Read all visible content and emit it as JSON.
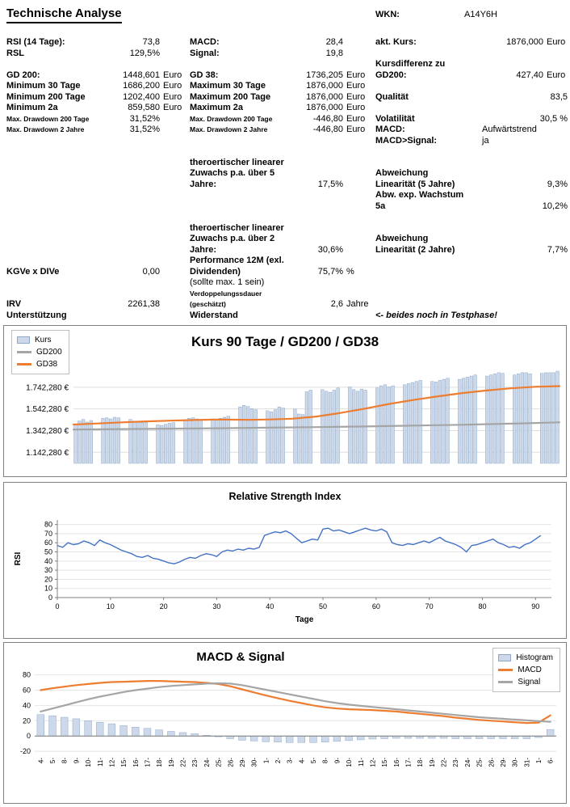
{
  "header": {
    "title": "Technische Analyse",
    "wkn_label": "WKN:",
    "wkn_value": "A14Y6H"
  },
  "colors": {
    "bar_fill": "#cdd9ea",
    "bar_stroke": "#8ea9c8",
    "orange": "#ed7d31",
    "gray": "#a5a5a5",
    "rsi_line": "#4472c4",
    "grid": "#dddddd",
    "axis": "#808080"
  },
  "stats": {
    "rows": [
      {
        "a": {
          "l": "RSI (14 Tage):",
          "v": "73,8"
        },
        "b": {
          "l": "MACD:",
          "v": "28,4"
        },
        "c": {
          "l": "akt. Kurs:",
          "v": "1876,000",
          "u": "Euro"
        }
      },
      {
        "a": {
          "l": "RSL",
          "v": "129,5%"
        },
        "b": {
          "l": "Signal:",
          "v": "19,8"
        },
        "c": {}
      },
      {
        "a": {},
        "b": {},
        "c": {
          "l": "Kursdifferenz zu"
        }
      },
      {
        "a": {
          "l": "GD 200:",
          "v": "1448,601",
          "u": "Euro"
        },
        "b": {
          "l": "GD 38:",
          "v": "1736,205",
          "u": "Euro"
        },
        "c": {
          "l": "GD200:",
          "v": "427,40",
          "u": "Euro"
        }
      },
      {
        "a": {
          "l": "Minimum 30 Tage",
          "v": "1686,200",
          "u": "Euro"
        },
        "b": {
          "l": "Maximum 30 Tage",
          "v": "1876,000",
          "u": "Euro"
        },
        "c": {}
      },
      {
        "a": {
          "l": "Minimum 200 Tage",
          "v": "1202,400",
          "u": "Euro"
        },
        "b": {
          "l": "Maximum 200 Tage",
          "v": "1876,000",
          "u": "Euro"
        },
        "c": {
          "l": "Qualität",
          "v": "83,5",
          "s": "span"
        }
      },
      {
        "a": {
          "l": "Minimum 2a",
          "v": "859,580",
          "u": "Euro"
        },
        "b": {
          "l": "Maximum 2a",
          "v": "1876,000",
          "u": "Euro"
        },
        "c": {}
      },
      {
        "a": {
          "l": "Max. Drawdown 200 Tage",
          "v": "31,52%",
          "s": "sm"
        },
        "b": {
          "l": "Max. Drawdown 200 Tage",
          "v": "-446,80",
          "u": "Euro",
          "s": "sm"
        },
        "c": {
          "l": "Volatilität",
          "v": "30,5 %",
          "s": "span"
        }
      },
      {
        "a": {
          "l": "Max. Drawdown 2 Jahre",
          "v": "31,52%",
          "s": "sm"
        },
        "b": {
          "l": "Max. Drawdown 2 Jahre",
          "v": "-446,80",
          "u": "Euro",
          "s": "sm"
        },
        "c": {
          "l": "MACD:",
          "v": "Aufwärtstrend",
          "s": "vleft"
        }
      },
      {
        "a": {},
        "b": {},
        "c": {
          "l": "MACD>Signal:",
          "v": "ja",
          "s": "vleft"
        }
      },
      {
        "a": {},
        "b": {},
        "c": {}
      },
      {
        "a": {},
        "b": {
          "l": "theroertischer linearer"
        },
        "c": {}
      },
      {
        "a": {},
        "b": {
          "l": "Zuwachs p.a. über 5"
        },
        "c": {
          "l": "Abweichung"
        }
      },
      {
        "a": {},
        "b": {
          "l": "Jahre:",
          "v": "17,5%"
        },
        "c": {
          "l": "Linearität (5 Jahre)",
          "v": "9,3%",
          "s": "span"
        }
      },
      {
        "a": {},
        "b": {},
        "c": {
          "l": "Abw. exp. Wachstum"
        }
      },
      {
        "a": {},
        "b": {},
        "c": {
          "l": "5a",
          "v": "10,2%",
          "s": "span"
        }
      },
      {
        "a": {},
        "b": {},
        "c": {}
      },
      {
        "a": {},
        "b": {
          "l": "theroertischer linearer"
        },
        "c": {}
      },
      {
        "a": {},
        "b": {
          "l": "Zuwachs p.a. über 2"
        },
        "c": {
          "l": "Abweichung"
        }
      },
      {
        "a": {},
        "b": {
          "l": "Jahre:",
          "v": "30,6%"
        },
        "c": {
          "l": "Linearität (2 Jahre)",
          "v": "7,7%",
          "s": "span"
        }
      },
      {
        "a": {},
        "b": {
          "l": "Performance 12M (exl."
        },
        "c": {}
      },
      {
        "a": {
          "l": "KGVe x DIVe",
          "v": "0,00"
        },
        "b": {
          "l": "Dividenden)",
          "v": "75,7%",
          "u": "%"
        },
        "c": {}
      },
      {
        "a": {},
        "b": {
          "l": "(sollte max. 1 sein)",
          "s": "reg"
        },
        "c": {}
      },
      {
        "a": {},
        "b": {
          "l": "Verdoppelungssdauer",
          "s": "sm"
        },
        "c": {}
      },
      {
        "a": {
          "l": "IRV",
          "v": "2261,38"
        },
        "b": {
          "l": "(geschätzt)",
          "v": "2,6",
          "u": "Jahre",
          "s": "sm"
        },
        "c": {}
      },
      {
        "a": {
          "l": "Unterstützung"
        },
        "b": {
          "l": "Widerstand"
        },
        "c": {
          "l": "<- beides noch in Testphase!",
          "s": "it"
        }
      }
    ]
  },
  "chart_data": [
    {
      "type": "bar",
      "title": "Kurs 90 Tage / GD200 / GD38",
      "legend": [
        {
          "label": "Kurs",
          "swatch": "bar"
        },
        {
          "label": "GD200",
          "swatch": "line",
          "color": "#a5a5a5"
        },
        {
          "label": "GD38",
          "swatch": "line",
          "color": "#ed7d31"
        }
      ],
      "ylim": [
        1040,
        1920
      ],
      "yticks": [
        {
          "v": 1142.28,
          "label": "1.142,280 €"
        },
        {
          "v": 1342.28,
          "label": "1.342,280 €"
        },
        {
          "v": 1542.28,
          "label": "1.542,280 €"
        },
        {
          "v": 1742.28,
          "label": "1.742,280 €"
        }
      ],
      "bars": [
        1400,
        1430,
        1445,
        1420,
        1435,
        0,
        0,
        1455,
        1460,
        1450,
        1465,
        1460,
        0,
        0,
        1445,
        1430,
        1425,
        1415,
        1420,
        0,
        0,
        1395,
        1390,
        1400,
        1410,
        1415,
        0,
        0,
        1435,
        1455,
        1460,
        1450,
        1445,
        0,
        0,
        1450,
        1445,
        1455,
        1465,
        1475,
        0,
        0,
        1560,
        1575,
        1565,
        1545,
        1535,
        0,
        0,
        1525,
        1515,
        1535,
        1560,
        1550,
        0,
        0,
        1540,
        1495,
        1490,
        1700,
        1715,
        0,
        0,
        1720,
        1705,
        1695,
        1715,
        1735,
        0,
        0,
        1745,
        1720,
        1705,
        1725,
        1715,
        0,
        0,
        1735,
        1755,
        1765,
        1745,
        1755,
        0,
        0,
        1765,
        1775,
        1785,
        1795,
        1805,
        0,
        0,
        1795,
        1790,
        1805,
        1815,
        1825,
        0,
        0,
        1815,
        1825,
        1835,
        1845,
        1855,
        0,
        0,
        1845,
        1855,
        1865,
        1876,
        1870,
        0,
        0,
        1855,
        1865,
        1876,
        1876,
        1865,
        0,
        0,
        1870,
        1876,
        1876,
        1876,
        1890
      ],
      "lines": [
        {
          "name": "GD200",
          "color": "#a5a5a5",
          "pts": [
            [
              0,
              1352
            ],
            [
              0.1,
              1356
            ],
            [
              0.2,
              1360
            ],
            [
              0.3,
              1364
            ],
            [
              0.4,
              1369
            ],
            [
              0.5,
              1374
            ],
            [
              0.6,
              1380
            ],
            [
              0.7,
              1388
            ],
            [
              0.8,
              1396
            ],
            [
              0.9,
              1406
            ],
            [
              1,
              1418
            ]
          ]
        },
        {
          "name": "GD38",
          "color": "#ed7d31",
          "pts": [
            [
              0,
              1398
            ],
            [
              0.05,
              1408
            ],
            [
              0.1,
              1418
            ],
            [
              0.15,
              1427
            ],
            [
              0.2,
              1434
            ],
            [
              0.25,
              1440
            ],
            [
              0.3,
              1444
            ],
            [
              0.33,
              1443
            ],
            [
              0.36,
              1441
            ],
            [
              0.4,
              1444
            ],
            [
              0.45,
              1452
            ],
            [
              0.5,
              1472
            ],
            [
              0.55,
              1505
            ],
            [
              0.6,
              1545
            ],
            [
              0.65,
              1588
            ],
            [
              0.7,
              1625
            ],
            [
              0.75,
              1658
            ],
            [
              0.8,
              1688
            ],
            [
              0.85,
              1712
            ],
            [
              0.9,
              1732
            ],
            [
              0.95,
              1746
            ],
            [
              1,
              1752
            ]
          ]
        }
      ]
    },
    {
      "type": "line",
      "title": "Relative Strength Index",
      "xlabel": "Tage",
      "ylabel": "RSI",
      "ylim": [
        0,
        85
      ],
      "yticks": [
        0,
        10,
        20,
        30,
        40,
        50,
        60,
        70,
        80
      ],
      "xlim": [
        0,
        93
      ],
      "xticks": [
        0,
        10,
        20,
        30,
        40,
        50,
        60,
        70,
        80,
        90
      ],
      "values": [
        57,
        55,
        60,
        58,
        59,
        62,
        60,
        57,
        63,
        60,
        58,
        55,
        52,
        50,
        48,
        45,
        44,
        46,
        43,
        42,
        40,
        38,
        37,
        39,
        42,
        44,
        43,
        46,
        48,
        47,
        45,
        50,
        52,
        51,
        53,
        52,
        54,
        53,
        55,
        68,
        70,
        72,
        71,
        73,
        70,
        65,
        60,
        62,
        64,
        63,
        75,
        76,
        73,
        74,
        72,
        70,
        72,
        74,
        76,
        74,
        73,
        75,
        72,
        60,
        58,
        57,
        59,
        58,
        60,
        62,
        60,
        63,
        66,
        62,
        60,
        58,
        55,
        50,
        57,
        58,
        60,
        62,
        64,
        60,
        58,
        55,
        56,
        54,
        58,
        60,
        64,
        68
      ]
    },
    {
      "type": "bar",
      "title": "MACD & Signal",
      "legend": [
        {
          "label": "Histogram",
          "swatch": "bar"
        },
        {
          "label": "MACD",
          "swatch": "line",
          "color": "#ed7d31"
        },
        {
          "label": "Signal",
          "swatch": "line",
          "color": "#a5a5a5"
        }
      ],
      "ylim": [
        -22,
        88
      ],
      "yticks": [
        -20,
        0,
        20,
        40,
        60,
        80
      ],
      "xlabels": [
        "4-",
        "5-",
        "8-",
        "9-",
        "10-",
        "11-",
        "12-",
        "15-",
        "16-",
        "17-",
        "18-",
        "19-",
        "22-",
        "23-",
        "24-",
        "25-",
        "26-",
        "29-",
        "30-",
        "1-",
        "2-",
        "3-",
        "4-",
        "5-",
        "8-",
        "9-",
        "10-",
        "11-",
        "12-",
        "15-",
        "16-",
        "17-",
        "18-",
        "19-",
        "22-",
        "23-",
        "24-",
        "25-",
        "26-",
        "29-",
        "30-",
        "31-",
        "1-",
        "6-"
      ],
      "histogram": [
        28,
        26.5,
        24.5,
        22.5,
        20,
        18,
        16,
        13.5,
        11.5,
        10,
        8,
        6,
        4.5,
        3,
        1,
        -1,
        -3.5,
        -5.5,
        -6.5,
        -7.5,
        -8,
        -8.5,
        -8.5,
        -8.5,
        -8,
        -7,
        -6,
        -5,
        -4,
        -3.5,
        -3,
        -3,
        -3,
        -3,
        -3,
        -3.5,
        -3.5,
        -3.5,
        -3.5,
        -3.5,
        -3.5,
        -3.5,
        -2,
        8.5
      ],
      "macd": [
        60,
        62.5,
        64.5,
        66.5,
        68,
        69.5,
        70.5,
        71,
        71.5,
        72,
        72,
        71.5,
        71,
        70.5,
        69.5,
        68,
        65,
        61,
        57,
        53,
        49.5,
        46,
        43,
        40,
        37.5,
        36,
        35,
        34.5,
        34,
        33,
        32,
        30.5,
        29,
        27.5,
        26,
        24,
        22.5,
        21,
        20,
        19,
        18,
        17,
        17.5,
        27
      ],
      "signal": [
        32,
        36,
        40,
        44,
        48,
        51.5,
        54.5,
        57.5,
        60,
        62,
        64,
        65.5,
        66.5,
        67.5,
        68.5,
        69,
        68.5,
        66.5,
        63.5,
        60.5,
        57.5,
        54.5,
        51.5,
        48.5,
        45.5,
        43,
        41,
        39.5,
        38,
        36.5,
        35,
        33.5,
        32,
        30.5,
        29,
        27.5,
        26,
        24.5,
        23.5,
        22.5,
        21.5,
        20.5,
        19.5,
        18.5
      ]
    }
  ]
}
